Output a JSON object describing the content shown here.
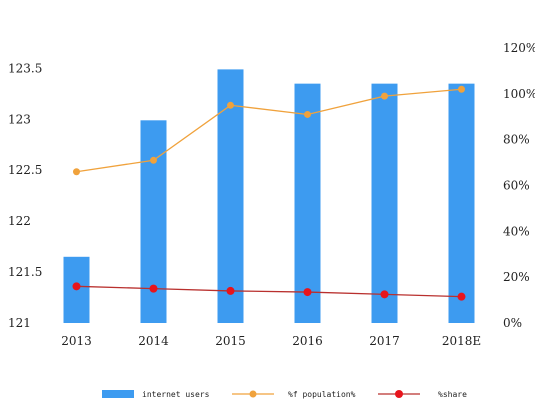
{
  "chart_data": {
    "type": "bar",
    "categories": [
      "2013",
      "2014",
      "2015",
      "2016",
      "2017",
      "2018E"
    ],
    "series": [
      {
        "name": "internet users",
        "type": "bar",
        "axis": "left",
        "color": "#3d9bf0",
        "values": [
          121.65,
          122.99,
          123.49,
          123.35,
          123.35,
          123.35
        ]
      },
      {
        "name": "%f population%",
        "type": "line",
        "axis": "right",
        "color": "#f0a23c",
        "values": [
          0.66,
          0.71,
          0.95,
          0.91,
          0.99,
          1.02
        ]
      },
      {
        "name": "%share",
        "type": "line",
        "axis": "right",
        "color": "#e8141c",
        "line_color": "#b9302e",
        "values": [
          0.16,
          0.15,
          0.14,
          0.135,
          0.125,
          0.115
        ]
      }
    ],
    "left_axis": {
      "ylim": [
        121,
        123.7
      ],
      "ticks": [
        "121",
        "121.5",
        "122",
        "122.5",
        "123",
        "123.5"
      ],
      "tick_values": [
        121,
        121.5,
        122,
        122.5,
        123,
        123.5
      ]
    },
    "right_axis": {
      "ylim": [
        0,
        1.2
      ],
      "ticks": [
        "0%",
        "20%",
        "40%",
        "60%",
        "80%",
        "100%",
        "120%"
      ],
      "tick_values": [
        0,
        0.2,
        0.4,
        0.6,
        0.8,
        1.0,
        1.2
      ]
    },
    "title": "",
    "xlabel": "",
    "ylabel": "",
    "grid": false,
    "legend_position": "bottom"
  }
}
